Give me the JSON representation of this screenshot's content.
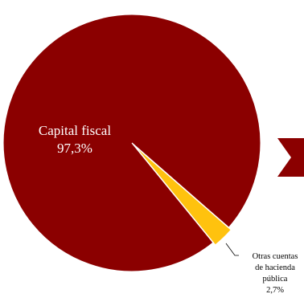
{
  "chart_data": {
    "type": "pie",
    "title": "",
    "slices": [
      {
        "label": "Capital fiscal",
        "value": 97.3,
        "value_label": "97,3%",
        "color": "#8B0000"
      },
      {
        "label_lines": [
          "Otras cuentas",
          "de hacienda",
          "pública"
        ],
        "value": 2.7,
        "value_label": "2,7%",
        "color": "#FFC20E"
      }
    ],
    "legend": "none"
  },
  "decoration": {
    "arrow_color": "#8B0000"
  }
}
